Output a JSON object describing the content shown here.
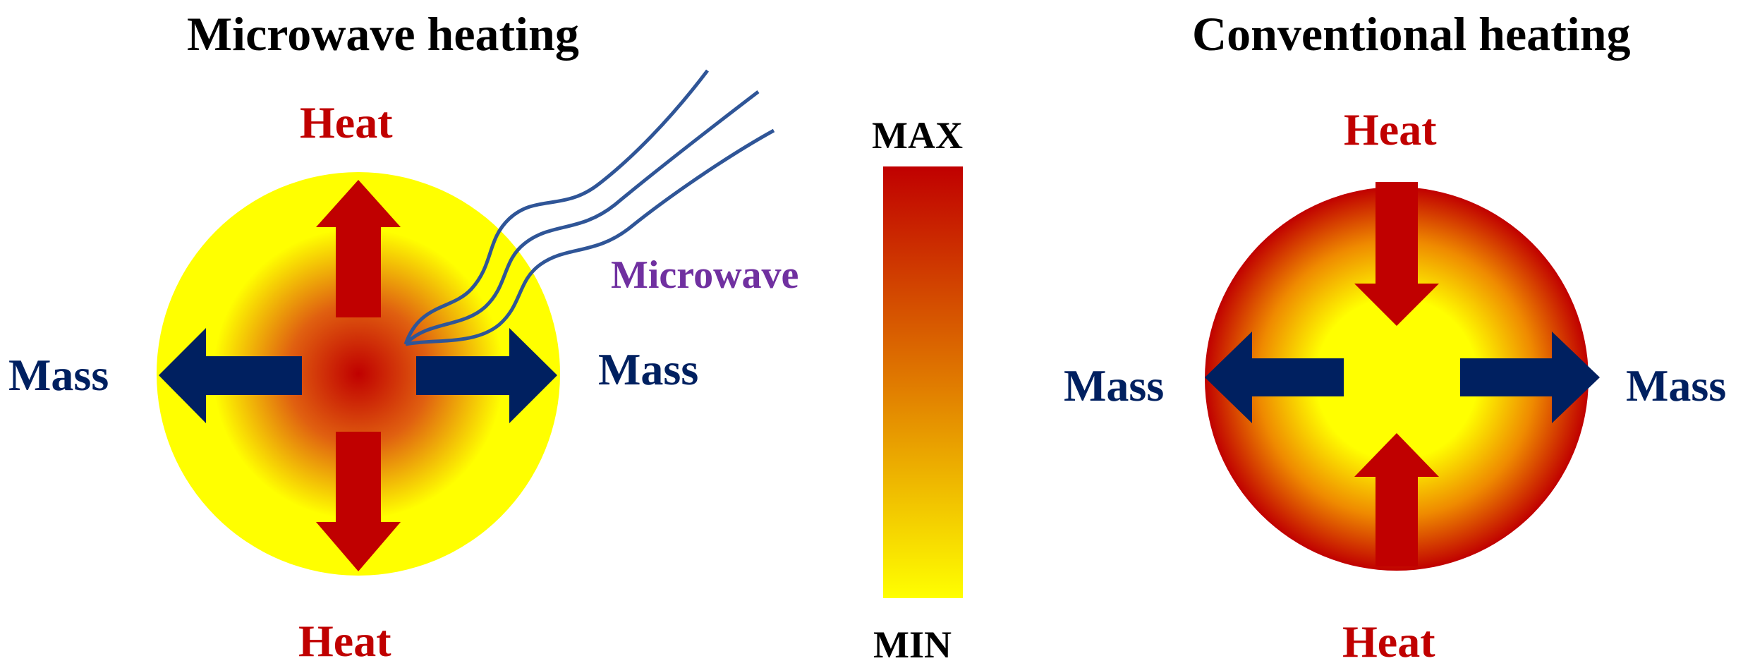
{
  "microwave_panel": {
    "title": "Microwave heating",
    "heat_top": "Heat",
    "heat_bottom": "Heat",
    "mass_left": "Mass",
    "mass_right": "Mass",
    "wave_label": "Microwave"
  },
  "scale_bar": {
    "max_label": "MAX",
    "min_label": "MIN"
  },
  "conventional_panel": {
    "title": "Conventional heating",
    "heat_top": "Heat",
    "heat_bottom": "Heat",
    "mass_left": "Mass",
    "mass_right": "Mass"
  },
  "colors": {
    "hot": "#c00000",
    "mid": "#e07000",
    "cold": "#ffff00",
    "heat_arrow": "#c00000",
    "mass_arrow": "#002060",
    "wave_line": "#2f5597",
    "wave_text": "#7030a0"
  }
}
